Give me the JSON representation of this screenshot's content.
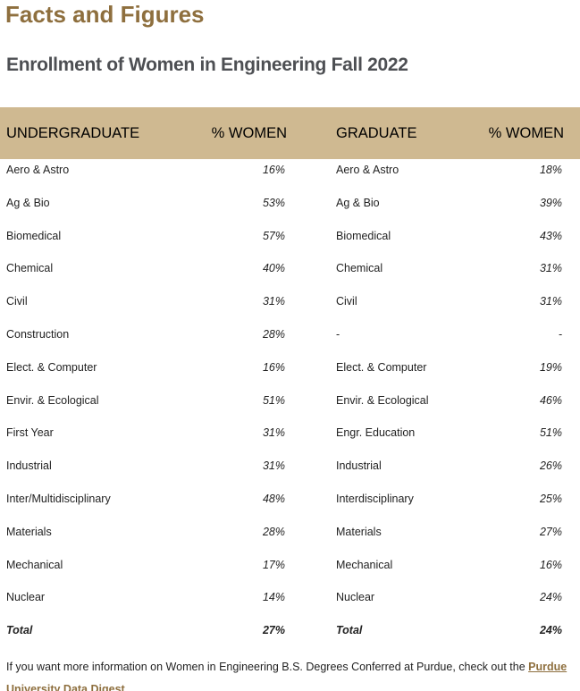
{
  "page_title": "Facts and Figures",
  "subtitle": "Enrollment of Women in Engineering Fall 2022",
  "table": {
    "headers": [
      "UNDERGRADUATE",
      "% WOMEN",
      "GRADUATE",
      "% WOMEN"
    ],
    "rows": [
      [
        "Aero & Astro",
        "16%",
        "Aero & Astro",
        "18%"
      ],
      [
        "Ag & Bio",
        "53%",
        "Ag & Bio",
        "39%"
      ],
      [
        "Biomedical",
        "57%",
        "Biomedical",
        "43%"
      ],
      [
        "Chemical",
        "40%",
        "Chemical",
        "31%"
      ],
      [
        "Civil",
        "31%",
        "Civil",
        "31%"
      ],
      [
        "Construction",
        "28%",
        "-",
        "-"
      ],
      [
        "Elect. & Computer",
        "16%",
        "Elect. & Computer",
        "19%"
      ],
      [
        "Envir. & Ecological",
        "51%",
        "Envir. & Ecological",
        "46%"
      ],
      [
        "First Year",
        "31%",
        "Engr. Education",
        "51%"
      ],
      [
        "Industrial",
        "31%",
        "Industrial",
        "26%"
      ],
      [
        "Inter/Multidisciplinary",
        "48%",
        "Interdisciplinary",
        "25%"
      ],
      [
        "Materials",
        "28%",
        "Materials",
        "27%"
      ],
      [
        "Mechanical",
        "17%",
        "Mechanical",
        "16%"
      ],
      [
        "Nuclear",
        "14%",
        "Nuclear",
        "24%"
      ],
      [
        "Total",
        "27%",
        "Total",
        "24%"
      ]
    ]
  },
  "footer": {
    "text": "If you want more information on Women in Engineering B.S. Degrees Conferred at Purdue, check out the ",
    "link_label": "Purdue University Data Digest",
    "end": "."
  },
  "colors": {
    "title": "#8e6f3e",
    "header_bg": "#cfb991",
    "subtitle": "#4d4f53",
    "link": "#8e6f3e"
  }
}
